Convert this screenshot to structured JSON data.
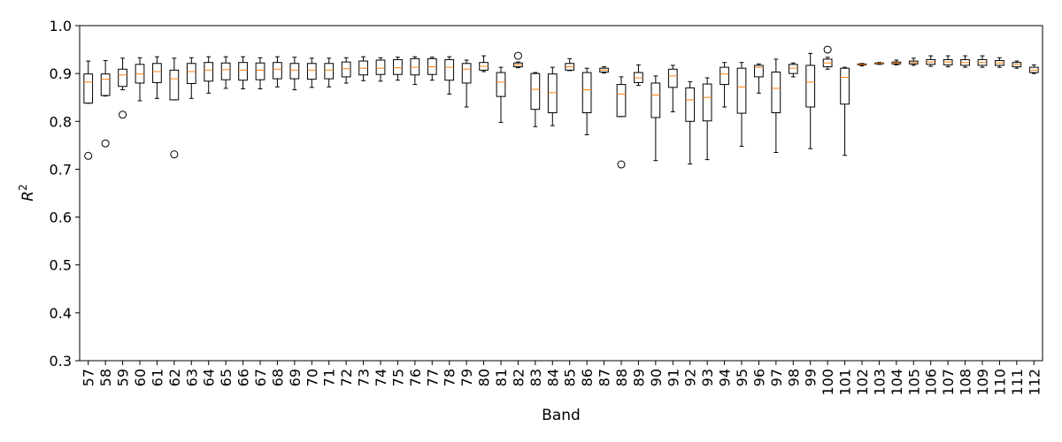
{
  "chart_data": {
    "type": "boxplot",
    "xlabel": "Band",
    "ylabel_base": "R",
    "ylabel_sup": "2",
    "ylim": [
      0.3,
      1.0
    ],
    "yticks": [
      "0.3",
      "0.4",
      "0.5",
      "0.6",
      "0.7",
      "0.8",
      "0.9",
      "1.0"
    ],
    "grid": false,
    "colors": {
      "median": "#ff7f0e",
      "box": "#000000"
    },
    "categories": [
      "57",
      "58",
      "59",
      "60",
      "61",
      "62",
      "63",
      "64",
      "65",
      "66",
      "67",
      "68",
      "69",
      "70",
      "71",
      "72",
      "73",
      "74",
      "75",
      "76",
      "77",
      "78",
      "79",
      "80",
      "81",
      "82",
      "83",
      "84",
      "85",
      "86",
      "87",
      "88",
      "89",
      "90",
      "91",
      "92",
      "93",
      "94",
      "95",
      "96",
      "97",
      "98",
      "99",
      "100",
      "101",
      "102",
      "103",
      "104",
      "105",
      "106",
      "107",
      "108",
      "109",
      "110",
      "111",
      "112"
    ],
    "boxes": [
      {
        "wl": 0.838,
        "q1": 0.838,
        "med": 0.882,
        "q3": 0.899,
        "wh": 0.926,
        "out": [
          0.728
        ]
      },
      {
        "wl": 0.853,
        "q1": 0.854,
        "med": 0.888,
        "q3": 0.899,
        "wh": 0.927,
        "out": [
          0.754
        ]
      },
      {
        "wl": 0.866,
        "q1": 0.873,
        "med": 0.897,
        "q3": 0.909,
        "wh": 0.932,
        "out": [
          0.814
        ]
      },
      {
        "wl": 0.843,
        "q1": 0.88,
        "med": 0.899,
        "q3": 0.919,
        "wh": 0.933,
        "out": []
      },
      {
        "wl": 0.848,
        "q1": 0.881,
        "med": 0.904,
        "q3": 0.921,
        "wh": 0.935,
        "out": []
      },
      {
        "wl": 0.845,
        "q1": 0.845,
        "med": 0.889,
        "q3": 0.907,
        "wh": 0.932,
        "out": [
          0.731
        ]
      },
      {
        "wl": 0.848,
        "q1": 0.879,
        "med": 0.904,
        "q3": 0.921,
        "wh": 0.933,
        "out": []
      },
      {
        "wl": 0.859,
        "q1": 0.884,
        "med": 0.907,
        "q3": 0.923,
        "wh": 0.935,
        "out": []
      },
      {
        "wl": 0.869,
        "q1": 0.887,
        "med": 0.908,
        "q3": 0.922,
        "wh": 0.935,
        "out": []
      },
      {
        "wl": 0.868,
        "q1": 0.886,
        "med": 0.907,
        "q3": 0.923,
        "wh": 0.935,
        "out": []
      },
      {
        "wl": 0.868,
        "q1": 0.887,
        "med": 0.907,
        "q3": 0.922,
        "wh": 0.933,
        "out": []
      },
      {
        "wl": 0.872,
        "q1": 0.889,
        "med": 0.909,
        "q3": 0.923,
        "wh": 0.935,
        "out": []
      },
      {
        "wl": 0.866,
        "q1": 0.889,
        "med": 0.907,
        "q3": 0.921,
        "wh": 0.934,
        "out": []
      },
      {
        "wl": 0.871,
        "q1": 0.888,
        "med": 0.907,
        "q3": 0.921,
        "wh": 0.932,
        "out": []
      },
      {
        "wl": 0.872,
        "q1": 0.889,
        "med": 0.907,
        "q3": 0.921,
        "wh": 0.932,
        "out": []
      },
      {
        "wl": 0.88,
        "q1": 0.893,
        "med": 0.91,
        "q3": 0.924,
        "wh": 0.933,
        "out": []
      },
      {
        "wl": 0.885,
        "q1": 0.897,
        "med": 0.911,
        "q3": 0.926,
        "wh": 0.935,
        "out": []
      },
      {
        "wl": 0.884,
        "q1": 0.898,
        "med": 0.911,
        "q3": 0.928,
        "wh": 0.933,
        "out": []
      },
      {
        "wl": 0.886,
        "q1": 0.898,
        "med": 0.912,
        "q3": 0.929,
        "wh": 0.934,
        "out": []
      },
      {
        "wl": 0.877,
        "q1": 0.897,
        "med": 0.913,
        "q3": 0.931,
        "wh": 0.935,
        "out": []
      },
      {
        "wl": 0.886,
        "q1": 0.898,
        "med": 0.914,
        "q3": 0.931,
        "wh": 0.934,
        "out": []
      },
      {
        "wl": 0.857,
        "q1": 0.886,
        "med": 0.913,
        "q3": 0.929,
        "wh": 0.935,
        "out": []
      },
      {
        "wl": 0.83,
        "q1": 0.88,
        "med": 0.909,
        "q3": 0.921,
        "wh": 0.928,
        "out": []
      },
      {
        "wl": 0.904,
        "q1": 0.907,
        "med": 0.915,
        "q3": 0.923,
        "wh": 0.937,
        "out": []
      },
      {
        "wl": 0.798,
        "q1": 0.852,
        "med": 0.882,
        "q3": 0.902,
        "wh": 0.913,
        "out": []
      },
      {
        "wl": 0.912,
        "q1": 0.914,
        "med": 0.918,
        "q3": 0.922,
        "wh": 0.924,
        "out": [
          0.937
        ]
      },
      {
        "wl": 0.789,
        "q1": 0.825,
        "med": 0.867,
        "q3": 0.9,
        "wh": 0.902,
        "out": []
      },
      {
        "wl": 0.791,
        "q1": 0.818,
        "med": 0.86,
        "q3": 0.899,
        "wh": 0.913,
        "out": []
      },
      {
        "wl": 0.906,
        "q1": 0.907,
        "med": 0.914,
        "q3": 0.921,
        "wh": 0.931,
        "out": []
      },
      {
        "wl": 0.772,
        "q1": 0.818,
        "med": 0.866,
        "q3": 0.902,
        "wh": 0.911,
        "out": []
      },
      {
        "wl": 0.901,
        "q1": 0.903,
        "med": 0.907,
        "q3": 0.911,
        "wh": 0.914,
        "out": []
      },
      {
        "wl": 0.81,
        "q1": 0.81,
        "med": 0.857,
        "q3": 0.877,
        "wh": 0.893,
        "out": [
          0.71
        ]
      },
      {
        "wl": 0.875,
        "q1": 0.881,
        "med": 0.891,
        "q3": 0.902,
        "wh": 0.918,
        "out": []
      },
      {
        "wl": 0.718,
        "q1": 0.808,
        "med": 0.855,
        "q3": 0.88,
        "wh": 0.895,
        "out": []
      },
      {
        "wl": 0.82,
        "q1": 0.871,
        "med": 0.895,
        "q3": 0.909,
        "wh": 0.917,
        "out": []
      },
      {
        "wl": 0.711,
        "q1": 0.8,
        "med": 0.845,
        "q3": 0.87,
        "wh": 0.883,
        "out": []
      },
      {
        "wl": 0.72,
        "q1": 0.801,
        "med": 0.85,
        "q3": 0.878,
        "wh": 0.891,
        "out": []
      },
      {
        "wl": 0.83,
        "q1": 0.877,
        "med": 0.899,
        "q3": 0.913,
        "wh": 0.923,
        "out": []
      },
      {
        "wl": 0.748,
        "q1": 0.817,
        "med": 0.872,
        "q3": 0.911,
        "wh": 0.923,
        "out": []
      },
      {
        "wl": 0.859,
        "q1": 0.893,
        "med": 0.913,
        "q3": 0.917,
        "wh": 0.92,
        "out": []
      },
      {
        "wl": 0.735,
        "q1": 0.818,
        "med": 0.869,
        "q3": 0.903,
        "wh": 0.93,
        "out": []
      },
      {
        "wl": 0.893,
        "q1": 0.9,
        "med": 0.911,
        "q3": 0.919,
        "wh": 0.922,
        "out": []
      },
      {
        "wl": 0.743,
        "q1": 0.83,
        "med": 0.882,
        "q3": 0.917,
        "wh": 0.942,
        "out": []
      },
      {
        "wl": 0.909,
        "q1": 0.914,
        "med": 0.922,
        "q3": 0.93,
        "wh": 0.934,
        "out": [
          0.95
        ]
      },
      {
        "wl": 0.729,
        "q1": 0.836,
        "med": 0.892,
        "q3": 0.911,
        "wh": 0.913,
        "out": []
      },
      {
        "wl": 0.916,
        "q1": 0.918,
        "med": 0.919,
        "q3": 0.92,
        "wh": 0.921,
        "out": []
      },
      {
        "wl": 0.919,
        "q1": 0.92,
        "med": 0.921,
        "q3": 0.922,
        "wh": 0.923,
        "out": []
      },
      {
        "wl": 0.918,
        "q1": 0.92,
        "med": 0.922,
        "q3": 0.924,
        "wh": 0.928,
        "out": []
      },
      {
        "wl": 0.917,
        "q1": 0.92,
        "med": 0.923,
        "q3": 0.926,
        "wh": 0.932,
        "out": []
      },
      {
        "wl": 0.915,
        "q1": 0.919,
        "med": 0.924,
        "q3": 0.929,
        "wh": 0.937,
        "out": []
      },
      {
        "wl": 0.914,
        "q1": 0.918,
        "med": 0.924,
        "q3": 0.929,
        "wh": 0.937,
        "out": []
      },
      {
        "wl": 0.913,
        "q1": 0.917,
        "med": 0.923,
        "q3": 0.929,
        "wh": 0.937,
        "out": []
      },
      {
        "wl": 0.913,
        "q1": 0.917,
        "med": 0.923,
        "q3": 0.929,
        "wh": 0.937,
        "out": []
      },
      {
        "wl": 0.913,
        "q1": 0.917,
        "med": 0.922,
        "q3": 0.927,
        "wh": 0.933,
        "out": []
      },
      {
        "wl": 0.911,
        "q1": 0.914,
        "med": 0.919,
        "q3": 0.923,
        "wh": 0.926,
        "out": []
      },
      {
        "wl": 0.9,
        "q1": 0.902,
        "med": 0.907,
        "q3": 0.913,
        "wh": 0.918,
        "out": []
      }
    ]
  }
}
